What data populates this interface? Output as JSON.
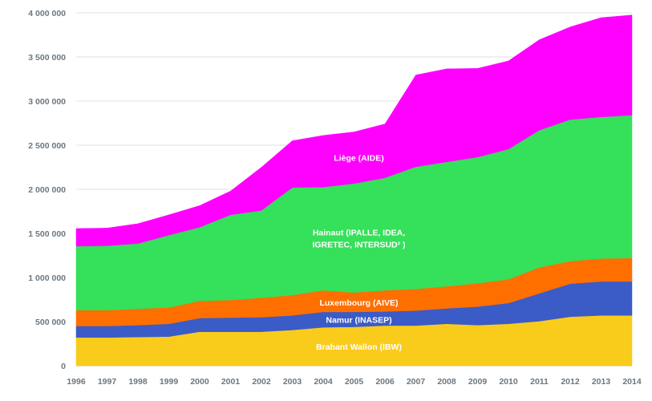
{
  "chart_data": {
    "type": "area",
    "stacked": true,
    "title": "",
    "xlabel": "",
    "ylabel": "",
    "ylim": [
      0,
      4000000
    ],
    "y_ticks": [
      0,
      500000,
      1000000,
      1500000,
      2000000,
      2500000,
      3000000,
      3500000,
      4000000
    ],
    "y_tick_labels": [
      "0",
      "500 000",
      "1 000 000",
      "1 500 000",
      "2 000 000",
      "2 500 000",
      "3 000 000",
      "3 500 000",
      "4 000 000"
    ],
    "grid": true,
    "x": [
      "1996",
      "1997",
      "1998",
      "1999",
      "2000",
      "2001",
      "2002",
      "2003",
      "2004",
      "2005",
      "2006",
      "2007",
      "2008",
      "2009",
      "2010",
      "2011",
      "2012",
      "2013",
      "2014"
    ],
    "series": [
      {
        "name": "Brabant Wallon (IBW)",
        "color": "#f9cc1c",
        "values": [
          320000,
          320000,
          325000,
          330000,
          385000,
          385000,
          385000,
          405000,
          435000,
          440000,
          455000,
          455000,
          475000,
          460000,
          475000,
          505000,
          555000,
          570000,
          570000
        ]
      },
      {
        "name": "Namur (INASEP)",
        "color": "#3b5bc6",
        "values": [
          130000,
          130000,
          135000,
          145000,
          155000,
          160000,
          165000,
          165000,
          175000,
          170000,
          160000,
          170000,
          175000,
          210000,
          235000,
          315000,
          375000,
          385000,
          385000
        ]
      },
      {
        "name": "Luxembourg (AIVE)",
        "color": "#ff6f00",
        "values": [
          180000,
          180000,
          185000,
          185000,
          195000,
          200000,
          220000,
          230000,
          245000,
          220000,
          240000,
          245000,
          250000,
          265000,
          270000,
          295000,
          255000,
          260000,
          265000
        ]
      },
      {
        "name": "Hainaut (IPALLE, IDEA, IGRETEC, INTERSUD² )",
        "label_lines": [
          "Hainaut (IPALLE, IDEA,",
          "IGRETEC, INTERSUD² )"
        ],
        "color": "#35e05a",
        "values": [
          725000,
          730000,
          740000,
          820000,
          835000,
          965000,
          990000,
          1220000,
          1170000,
          1235000,
          1275000,
          1385000,
          1410000,
          1430000,
          1475000,
          1555000,
          1605000,
          1605000,
          1620000
        ]
      },
      {
        "name": "Liège (AIDE)",
        "color": "#ff00ff",
        "values": [
          200000,
          200000,
          225000,
          230000,
          245000,
          270000,
          490000,
          530000,
          585000,
          585000,
          610000,
          1040000,
          1055000,
          1005000,
          1000000,
          1025000,
          1050000,
          1125000,
          1135000
        ]
      }
    ]
  }
}
